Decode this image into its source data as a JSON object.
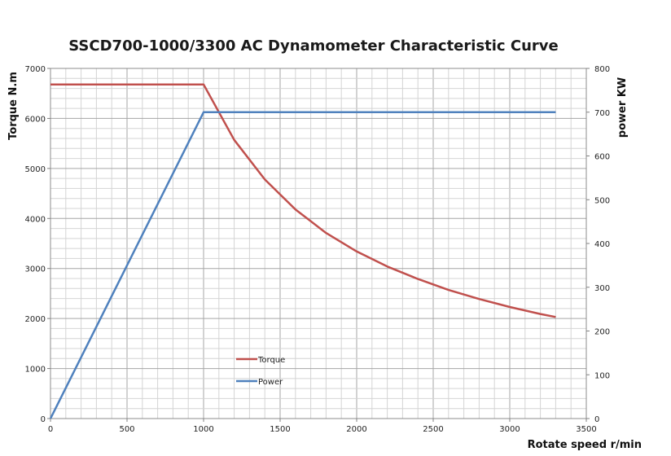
{
  "chart_data": {
    "type": "line",
    "title": "SSCD700-1000/3300 AC Dynamometer Characteristic Curve",
    "xlabel": "Rotate speed r/min",
    "ylabel": "Torque N.m",
    "y2label": "power KW",
    "xlim": [
      0,
      3500
    ],
    "ylim": [
      0,
      7000
    ],
    "y2lim": [
      0,
      800
    ],
    "xticks": [
      0,
      500,
      1000,
      1500,
      2000,
      2500,
      3000,
      3500
    ],
    "yticks": [
      0,
      1000,
      2000,
      3000,
      4000,
      5000,
      6000,
      7000
    ],
    "y2ticks": [
      0,
      100,
      200,
      300,
      400,
      500,
      600,
      700,
      800
    ],
    "legend_position": "lower-center",
    "series": [
      {
        "name": "Torque",
        "axis": "left",
        "color": "#c0504d",
        "x": [
          0,
          1000,
          1200,
          1400,
          1600,
          1800,
          2000,
          2200,
          2400,
          2600,
          2800,
          3000,
          3200,
          3300
        ],
        "values": [
          6680,
          6680,
          5570,
          4780,
          4180,
          3710,
          3340,
          3040,
          2790,
          2570,
          2390,
          2230,
          2090,
          2030
        ]
      },
      {
        "name": "Power",
        "axis": "right",
        "color": "#4f81bd",
        "x": [
          0,
          1000,
          3300
        ],
        "values": [
          0,
          700,
          700
        ]
      }
    ]
  }
}
